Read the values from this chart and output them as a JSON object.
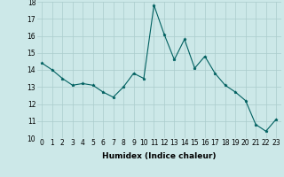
{
  "xlabel": "Humidex (Indice chaleur)",
  "x": [
    0,
    1,
    2,
    3,
    4,
    5,
    6,
    7,
    8,
    9,
    10,
    11,
    12,
    13,
    14,
    15,
    16,
    17,
    18,
    19,
    20,
    21,
    22,
    23
  ],
  "y": [
    14.4,
    14.0,
    13.5,
    13.1,
    13.2,
    13.1,
    12.7,
    12.4,
    13.0,
    13.8,
    13.5,
    17.8,
    16.1,
    14.6,
    15.8,
    14.1,
    14.8,
    13.8,
    13.1,
    12.7,
    12.2,
    10.8,
    10.4,
    11.1
  ],
  "ylim": [
    10,
    18
  ],
  "xlim": [
    -0.5,
    23.5
  ],
  "yticks": [
    10,
    11,
    12,
    13,
    14,
    15,
    16,
    17,
    18
  ],
  "xticks": [
    0,
    1,
    2,
    3,
    4,
    5,
    6,
    7,
    8,
    9,
    10,
    11,
    12,
    13,
    14,
    15,
    16,
    17,
    18,
    19,
    20,
    21,
    22,
    23
  ],
  "line_color": "#006060",
  "marker": "*",
  "bg_color": "#cce8e8",
  "grid_color": "#aacccc",
  "label_fontsize": 6.5,
  "tick_fontsize": 5.5
}
